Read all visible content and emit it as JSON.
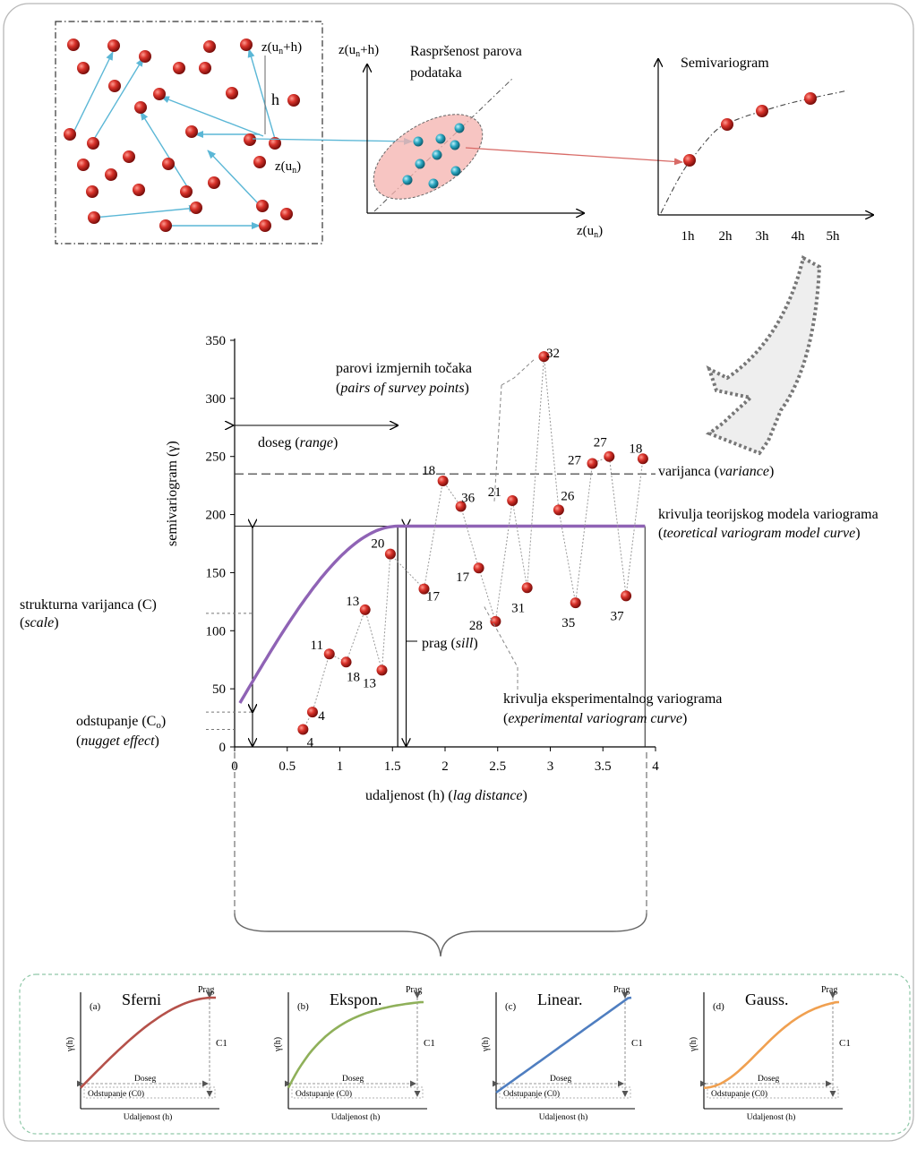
{
  "top": {
    "point_labels": {
      "zh": "z(un+h)",
      "h": "h",
      "z": "z(un)"
    },
    "scatter_title": [
      "Raspršenost parova",
      "podataka"
    ],
    "scatter_y_label": "z(un+h)",
    "scatter_x_label": "z(un)",
    "semivario_title": "Semivariogram",
    "semivario_ticks": [
      "1h",
      "2h",
      "3h",
      "4h",
      "5h"
    ]
  },
  "main": {
    "ylabel": "semivariogram  (γ)",
    "xlabel": "udaljenost (h)",
    "xlabel_en": "lag distance",
    "y_ticks": [
      "0",
      "50",
      "100",
      "150",
      "200",
      "250",
      "300",
      "350"
    ],
    "x_ticks": [
      "0",
      "0.5",
      "1",
      "1.5",
      "2",
      "2.5",
      "3",
      "3.5",
      "4"
    ],
    "annotations": {
      "range": "doseg",
      "range_en": "range",
      "variance": "varijanca",
      "variance_en": "variance",
      "model_curve": "krivulja teorijskog modela variograma",
      "model_curve_en": "teoretical variogram model curve",
      "pairs": "parovi izmjernih točaka",
      "pairs_en": "pairs of survey points",
      "sill": "prag",
      "sill_en": "sill",
      "structural": "strukturna varijanca (C)",
      "structural_en": "scale",
      "nugget": "odstupanje (C",
      "nugget_sub": "o",
      "nugget_en": "nugget effect",
      "experimental": "krivulja eksperimentalnog variograma",
      "experimental_en": "experimental variogram curve"
    }
  },
  "chart_data": {
    "type": "scatter",
    "xlabel": "udaljenost (h) (lag distance)",
    "ylabel": "semivariogram  (γ)",
    "xlim": [
      0,
      4
    ],
    "ylim": [
      0,
      350
    ],
    "variance": 235,
    "sill": 190,
    "nugget": 30,
    "range": 1.55,
    "points": [
      {
        "x": 0.65,
        "y": 15,
        "n": "4"
      },
      {
        "x": 0.74,
        "y": 30,
        "n": "4"
      },
      {
        "x": 0.9,
        "y": 80,
        "n": "11"
      },
      {
        "x": 1.06,
        "y": 73,
        "n": "18"
      },
      {
        "x": 1.24,
        "y": 118,
        "n": "13"
      },
      {
        "x": 1.4,
        "y": 66,
        "n": "13"
      },
      {
        "x": 1.48,
        "y": 166,
        "n": "20"
      },
      {
        "x": 1.8,
        "y": 136,
        "n": "17"
      },
      {
        "x": 1.98,
        "y": 229,
        "n": "18"
      },
      {
        "x": 2.15,
        "y": 207,
        "n": "36"
      },
      {
        "x": 2.32,
        "y": 154,
        "n": "17"
      },
      {
        "x": 2.48,
        "y": 108,
        "n": "28"
      },
      {
        "x": 2.64,
        "y": 212,
        "n": "21"
      },
      {
        "x": 2.78,
        "y": 137,
        "n": "31"
      },
      {
        "x": 2.94,
        "y": 336,
        "n": "32"
      },
      {
        "x": 3.08,
        "y": 204,
        "n": "26"
      },
      {
        "x": 3.24,
        "y": 124,
        "n": "35"
      },
      {
        "x": 3.4,
        "y": 244,
        "n": "27"
      },
      {
        "x": 3.56,
        "y": 250,
        "n": "27"
      },
      {
        "x": 3.72,
        "y": 130,
        "n": "37"
      },
      {
        "x": 3.88,
        "y": 248,
        "n": "18"
      }
    ]
  },
  "models": [
    {
      "letter": "(a)",
      "name": "Sferni",
      "color": "#b5514a"
    },
    {
      "letter": "(b)",
      "name": "Ekspon.",
      "color": "#8fb05a"
    },
    {
      "letter": "(c)",
      "name": "Linear.",
      "color": "#4f7ec0"
    },
    {
      "letter": "(d)",
      "name": "Gauss.",
      "color": "#f0a050"
    }
  ],
  "model_labels": {
    "prag": "Prag",
    "c1": "C1",
    "doseg": "Doseg",
    "odstupanje": "Odstupanje (C0)",
    "xlabel": "Udaljenost (h)",
    "ylabel": "γ(h)"
  },
  "colors": {
    "point": "#c0201e",
    "cyan": "#2aa6c0",
    "arrow": "#5bb7d6",
    "model": "#8f63b5",
    "ellipse": "#f4b1ad",
    "bottom_border": "#8fc8a8"
  }
}
